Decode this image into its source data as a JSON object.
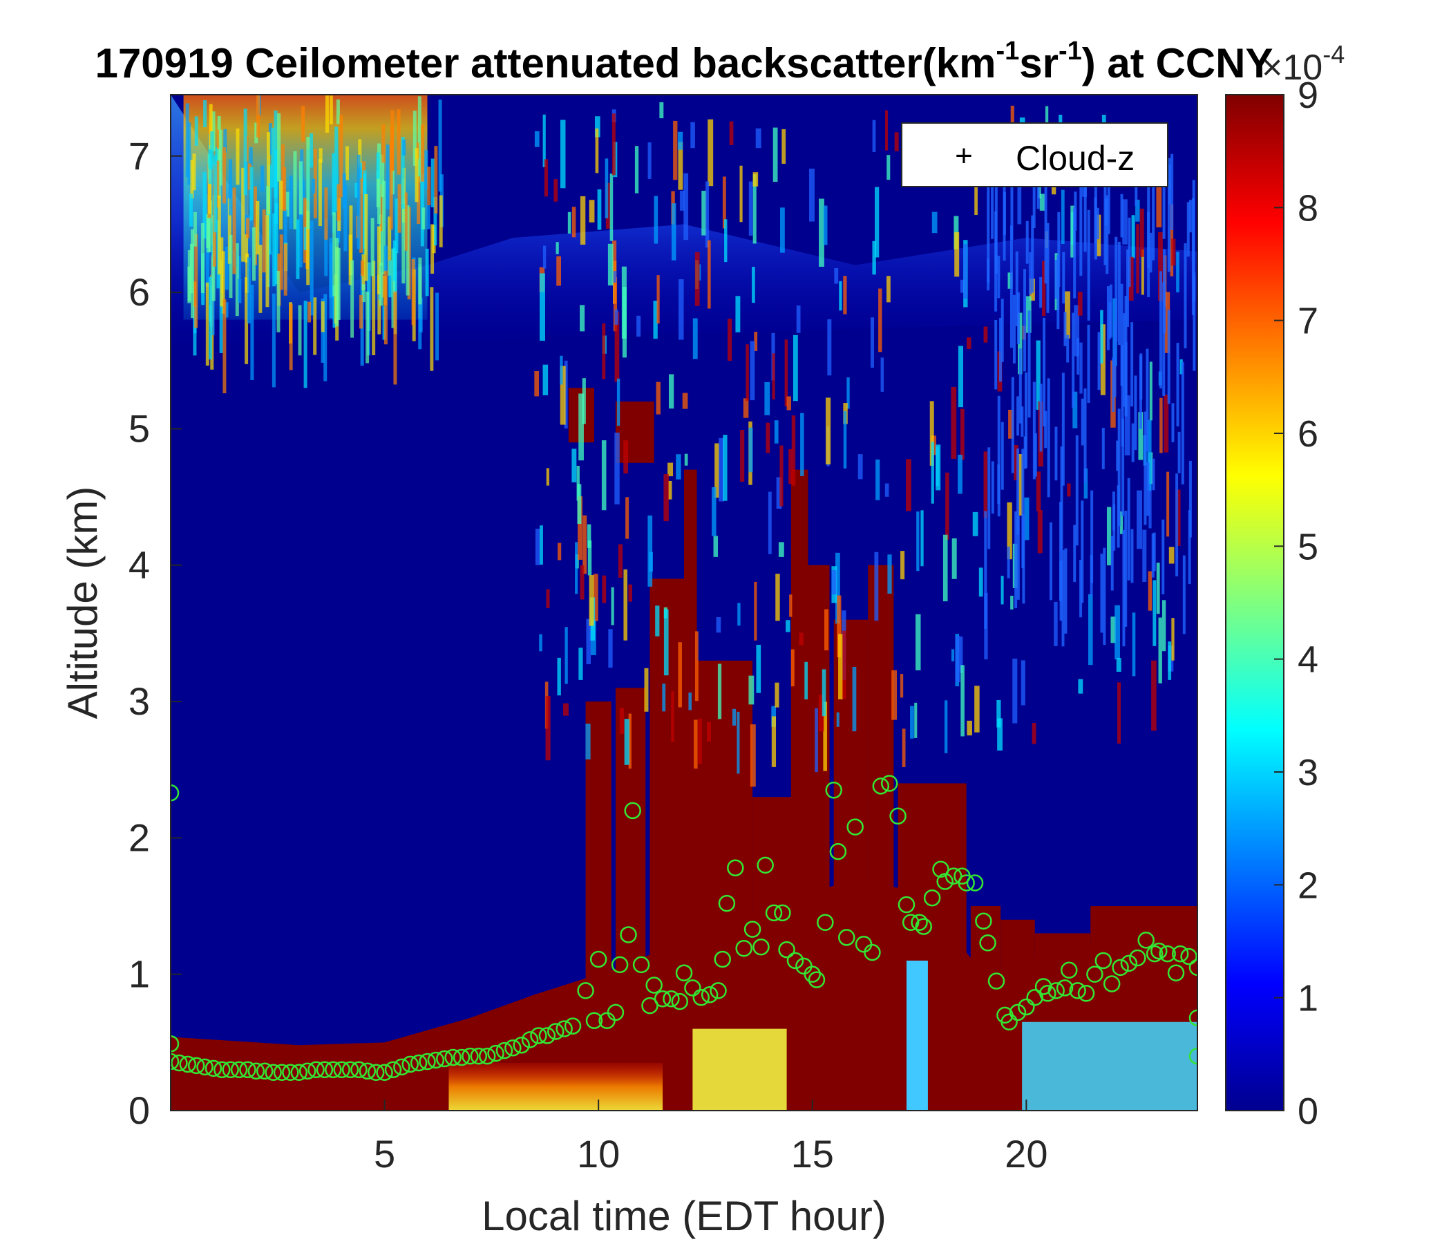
{
  "chart_data": {
    "type": "heatmap",
    "title": {
      "prefix": "170919 Ceilometer attenuated backscatter(km",
      "sup1": "-1",
      "mid": "sr",
      "sup2": "-1",
      "suffix": ") at CCNY"
    },
    "xlabel": "Local time (EDT hour)",
    "ylabel": "Altitude (km)",
    "xlim": [
      0,
      24
    ],
    "ylim": [
      0,
      7.45
    ],
    "x_ticks": [
      "5",
      "10",
      "15",
      "20"
    ],
    "y_ticks": [
      "0",
      "1",
      "2",
      "3",
      "4",
      "5",
      "6",
      "7"
    ],
    "colorbar": {
      "clim": [
        0,
        9
      ],
      "ticks": [
        "0",
        "1",
        "2",
        "3",
        "4",
        "5",
        "6",
        "7",
        "8",
        "9"
      ],
      "exponent_base": "×10",
      "exponent_power": "-4",
      "colormap": "jet"
    },
    "legend": {
      "placement": "top-right",
      "entries": [
        {
          "marker": "+",
          "label": "Cloud-z"
        }
      ]
    },
    "colors": {
      "marker": "#33e633",
      "background_low": "#00008f",
      "high": "#800000"
    },
    "layers": {
      "boundary_layer_top": [
        {
          "x": 0.0,
          "y": 0.54
        },
        {
          "x": 3.0,
          "y": 0.48
        },
        {
          "x": 5.0,
          "y": 0.5
        },
        {
          "x": 7.0,
          "y": 0.68
        },
        {
          "x": 8.5,
          "y": 0.85
        },
        {
          "x": 10.5,
          "y": 1.05
        },
        {
          "x": 12.0,
          "y": 1.25
        },
        {
          "x": 14.0,
          "y": 1.5
        },
        {
          "x": 16.0,
          "y": 1.7
        },
        {
          "x": 17.5,
          "y": 1.6
        },
        {
          "x": 18.5,
          "y": 1.2
        },
        {
          "x": 19.0,
          "y": 1.0
        },
        {
          "x": 21.0,
          "y": 1.2
        },
        {
          "x": 23.0,
          "y": 1.3
        },
        {
          "x": 24.0,
          "y": 1.4
        }
      ],
      "aerosol_layer_top": [
        {
          "x": 0.0,
          "y": 7.45
        },
        {
          "x": 3.0,
          "y": 6.0
        },
        {
          "x": 6.0,
          "y": 6.2
        },
        {
          "x": 8.0,
          "y": 6.4
        },
        {
          "x": 12.0,
          "y": 6.5
        },
        {
          "x": 16.0,
          "y": 6.2
        },
        {
          "x": 20.0,
          "y": 6.4
        },
        {
          "x": 24.0,
          "y": 6.3
        }
      ],
      "cloud_columns": [
        {
          "x0": 9.7,
          "x1": 10.3,
          "y0": 0.8,
          "y1": 3.0
        },
        {
          "x0": 10.4,
          "x1": 11.1,
          "y0": 1.0,
          "y1": 3.1
        },
        {
          "x0": 11.2,
          "x1": 12.2,
          "y0": 1.0,
          "y1": 3.9
        },
        {
          "x0": 12.2,
          "x1": 13.6,
          "y0": 1.2,
          "y1": 3.3
        },
        {
          "x0": 13.6,
          "x1": 14.8,
          "y0": 1.4,
          "y1": 2.3
        },
        {
          "x0": 14.8,
          "x1": 15.4,
          "y0": 0.0,
          "y1": 4.0
        },
        {
          "x0": 15.5,
          "x1": 16.3,
          "y0": 0.0,
          "y1": 3.6
        },
        {
          "x0": 16.3,
          "x1": 16.9,
          "y0": 0.0,
          "y1": 4.0
        },
        {
          "x0": 17.0,
          "x1": 18.6,
          "y0": 0.0,
          "y1": 2.4
        },
        {
          "x0": 18.7,
          "x1": 19.4,
          "y0": 0.0,
          "y1": 1.5
        },
        {
          "x0": 19.4,
          "x1": 20.2,
          "y0": 0.0,
          "y1": 1.4
        },
        {
          "x0": 20.2,
          "x1": 21.5,
          "y0": 0.0,
          "y1": 1.3
        },
        {
          "x0": 21.5,
          "x1": 24.0,
          "y0": 0.0,
          "y1": 1.5
        }
      ],
      "elevated_cloud_patches": [
        {
          "x0": 9.3,
          "x1": 9.9,
          "y0": 4.9,
          "y1": 5.3
        },
        {
          "x0": 10.4,
          "x1": 11.3,
          "y0": 4.75,
          "y1": 5.2
        },
        {
          "x0": 14.5,
          "x1": 14.9,
          "y0": 0.0,
          "y1": 4.7
        },
        {
          "x0": 12.0,
          "x1": 12.3,
          "y0": 0.0,
          "y1": 4.7
        }
      ]
    },
    "mixing_height_points": [
      {
        "x": 0.0,
        "y": 0.36
      },
      {
        "x": 0.2,
        "y": 0.35
      },
      {
        "x": 0.4,
        "y": 0.34
      },
      {
        "x": 0.6,
        "y": 0.33
      },
      {
        "x": 0.8,
        "y": 0.32
      },
      {
        "x": 1.0,
        "y": 0.31
      },
      {
        "x": 1.2,
        "y": 0.3
      },
      {
        "x": 1.4,
        "y": 0.3
      },
      {
        "x": 1.6,
        "y": 0.3
      },
      {
        "x": 1.8,
        "y": 0.3
      },
      {
        "x": 2.0,
        "y": 0.29
      },
      {
        "x": 2.2,
        "y": 0.29
      },
      {
        "x": 2.4,
        "y": 0.28
      },
      {
        "x": 2.6,
        "y": 0.28
      },
      {
        "x": 2.8,
        "y": 0.28
      },
      {
        "x": 3.0,
        "y": 0.28
      },
      {
        "x": 3.2,
        "y": 0.29
      },
      {
        "x": 3.4,
        "y": 0.3
      },
      {
        "x": 3.6,
        "y": 0.3
      },
      {
        "x": 3.8,
        "y": 0.3
      },
      {
        "x": 4.0,
        "y": 0.3
      },
      {
        "x": 4.2,
        "y": 0.3
      },
      {
        "x": 4.4,
        "y": 0.3
      },
      {
        "x": 4.6,
        "y": 0.29
      },
      {
        "x": 4.8,
        "y": 0.28
      },
      {
        "x": 5.0,
        "y": 0.28
      },
      {
        "x": 5.2,
        "y": 0.3
      },
      {
        "x": 5.4,
        "y": 0.32
      },
      {
        "x": 5.6,
        "y": 0.34
      },
      {
        "x": 5.8,
        "y": 0.35
      },
      {
        "x": 6.0,
        "y": 0.36
      },
      {
        "x": 6.2,
        "y": 0.37
      },
      {
        "x": 6.4,
        "y": 0.38
      },
      {
        "x": 6.6,
        "y": 0.39
      },
      {
        "x": 6.8,
        "y": 0.39
      },
      {
        "x": 7.0,
        "y": 0.4
      },
      {
        "x": 7.2,
        "y": 0.4
      },
      {
        "x": 7.4,
        "y": 0.4
      },
      {
        "x": 7.6,
        "y": 0.42
      },
      {
        "x": 7.8,
        "y": 0.44
      },
      {
        "x": 8.0,
        "y": 0.46
      },
      {
        "x": 8.2,
        "y": 0.48
      },
      {
        "x": 8.4,
        "y": 0.52
      },
      {
        "x": 8.6,
        "y": 0.55
      },
      {
        "x": 8.8,
        "y": 0.55
      },
      {
        "x": 9.0,
        "y": 0.58
      },
      {
        "x": 9.2,
        "y": 0.6
      },
      {
        "x": 9.4,
        "y": 0.62
      },
      {
        "x": 9.7,
        "y": 0.88
      },
      {
        "x": 9.9,
        "y": 0.66
      },
      {
        "x": 10.0,
        "y": 1.11
      },
      {
        "x": 10.2,
        "y": 0.66
      },
      {
        "x": 10.4,
        "y": 0.72
      },
      {
        "x": 10.5,
        "y": 1.07
      },
      {
        "x": 10.7,
        "y": 1.29
      },
      {
        "x": 10.8,
        "y": 2.2
      },
      {
        "x": 11.0,
        "y": 1.07
      },
      {
        "x": 11.2,
        "y": 0.77
      },
      {
        "x": 11.3,
        "y": 0.92
      },
      {
        "x": 11.5,
        "y": 0.82
      },
      {
        "x": 11.7,
        "y": 0.82
      },
      {
        "x": 11.9,
        "y": 0.8
      },
      {
        "x": 12.0,
        "y": 1.01
      },
      {
        "x": 12.2,
        "y": 0.9
      },
      {
        "x": 12.4,
        "y": 0.83
      },
      {
        "x": 12.6,
        "y": 0.85
      },
      {
        "x": 12.8,
        "y": 0.88
      },
      {
        "x": 12.9,
        "y": 1.11
      },
      {
        "x": 13.0,
        "y": 1.52
      },
      {
        "x": 13.2,
        "y": 1.78
      },
      {
        "x": 13.4,
        "y": 1.19
      },
      {
        "x": 13.6,
        "y": 1.33
      },
      {
        "x": 13.8,
        "y": 1.2
      },
      {
        "x": 13.9,
        "y": 1.8
      },
      {
        "x": 14.1,
        "y": 1.45
      },
      {
        "x": 14.3,
        "y": 1.45
      },
      {
        "x": 14.4,
        "y": 1.18
      },
      {
        "x": 14.6,
        "y": 1.1
      },
      {
        "x": 14.8,
        "y": 1.06
      },
      {
        "x": 15.0,
        "y": 1.0
      },
      {
        "x": 15.1,
        "y": 0.96
      },
      {
        "x": 15.3,
        "y": 1.38
      },
      {
        "x": 15.5,
        "y": 2.35
      },
      {
        "x": 15.6,
        "y": 1.9
      },
      {
        "x": 15.8,
        "y": 1.27
      },
      {
        "x": 16.0,
        "y": 2.08
      },
      {
        "x": 16.2,
        "y": 1.22
      },
      {
        "x": 16.4,
        "y": 1.16
      },
      {
        "x": 16.6,
        "y": 2.38
      },
      {
        "x": 16.8,
        "y": 2.4
      },
      {
        "x": 17.0,
        "y": 2.16
      },
      {
        "x": 17.2,
        "y": 1.51
      },
      {
        "x": 17.3,
        "y": 1.38
      },
      {
        "x": 17.5,
        "y": 1.38
      },
      {
        "x": 17.6,
        "y": 1.35
      },
      {
        "x": 17.8,
        "y": 1.56
      },
      {
        "x": 18.0,
        "y": 1.77
      },
      {
        "x": 18.1,
        "y": 1.68
      },
      {
        "x": 18.3,
        "y": 1.72
      },
      {
        "x": 18.5,
        "y": 1.72
      },
      {
        "x": 18.6,
        "y": 1.67
      },
      {
        "x": 18.8,
        "y": 1.67
      },
      {
        "x": 19.0,
        "y": 1.39
      },
      {
        "x": 19.1,
        "y": 1.23
      },
      {
        "x": 19.3,
        "y": 0.95
      },
      {
        "x": 19.5,
        "y": 0.7
      },
      {
        "x": 19.6,
        "y": 0.65
      },
      {
        "x": 19.8,
        "y": 0.72
      },
      {
        "x": 20.0,
        "y": 0.76
      },
      {
        "x": 20.2,
        "y": 0.83
      },
      {
        "x": 20.4,
        "y": 0.91
      },
      {
        "x": 20.5,
        "y": 0.86
      },
      {
        "x": 20.7,
        "y": 0.88
      },
      {
        "x": 20.9,
        "y": 0.9
      },
      {
        "x": 21.0,
        "y": 1.03
      },
      {
        "x": 21.2,
        "y": 0.88
      },
      {
        "x": 21.4,
        "y": 0.86
      },
      {
        "x": 21.6,
        "y": 1.0
      },
      {
        "x": 21.8,
        "y": 1.1
      },
      {
        "x": 22.0,
        "y": 0.93
      },
      {
        "x": 22.2,
        "y": 1.05
      },
      {
        "x": 22.4,
        "y": 1.08
      },
      {
        "x": 22.6,
        "y": 1.12
      },
      {
        "x": 22.8,
        "y": 1.25
      },
      {
        "x": 23.0,
        "y": 1.15
      },
      {
        "x": 23.1,
        "y": 1.17
      },
      {
        "x": 23.3,
        "y": 1.15
      },
      {
        "x": 23.5,
        "y": 1.01
      },
      {
        "x": 23.6,
        "y": 1.15
      },
      {
        "x": 23.8,
        "y": 1.13
      },
      {
        "x": 24.0,
        "y": 1.05
      },
      {
        "x": 24.0,
        "y": 0.68
      },
      {
        "x": 24.0,
        "y": 0.4
      },
      {
        "x": 0.0,
        "y": 0.49
      },
      {
        "x": 0.0,
        "y": 2.33
      }
    ]
  }
}
